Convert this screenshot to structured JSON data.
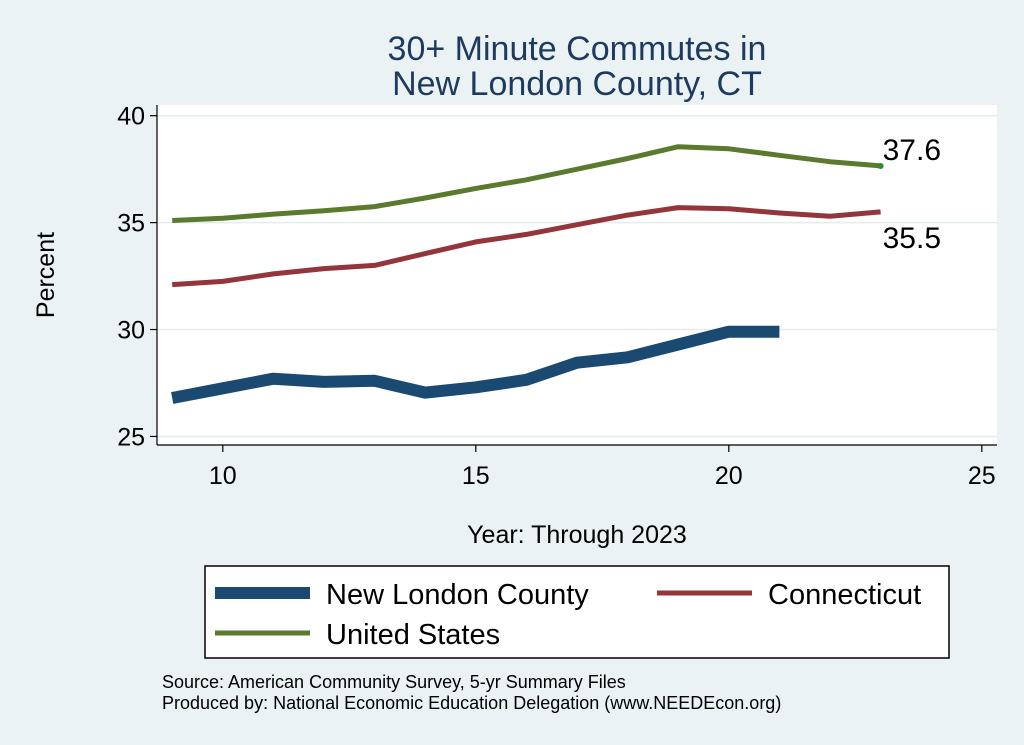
{
  "chart_data": {
    "type": "line",
    "title_lines": [
      "30+ Minute Commutes in",
      "New London County, CT"
    ],
    "xlabel": "Year: Through 2023",
    "ylabel": "Percent",
    "xlim": [
      8.7,
      25.3
    ],
    "ylim": [
      24.6,
      40.5
    ],
    "xticks": [
      10,
      15,
      20,
      25
    ],
    "yticks": [
      25,
      30,
      35,
      40
    ],
    "grid": true,
    "legend_position": "bottom",
    "series": [
      {
        "name": "New London County",
        "color": "#1a4971",
        "x": [
          9,
          10,
          11,
          12,
          13,
          14,
          15,
          16,
          17,
          18,
          19,
          20,
          21
        ],
        "values": [
          26.8,
          27.25,
          27.7,
          27.55,
          27.6,
          27.05,
          27.3,
          27.65,
          28.45,
          28.7,
          29.3,
          29.9,
          29.9
        ]
      },
      {
        "name": "Connecticut",
        "color": "#93353a",
        "x": [
          9,
          10,
          11,
          12,
          13,
          14,
          15,
          16,
          17,
          18,
          19,
          20,
          21,
          22,
          23
        ],
        "values": [
          32.1,
          32.25,
          32.6,
          32.85,
          33.0,
          33.55,
          34.1,
          34.45,
          34.9,
          35.35,
          35.7,
          35.65,
          35.45,
          35.3,
          35.5
        ]
      },
      {
        "name": "United States",
        "color": "#5a7a2e",
        "x": [
          9,
          10,
          11,
          12,
          13,
          14,
          15,
          16,
          17,
          18,
          19,
          20,
          21,
          22,
          23
        ],
        "values": [
          35.1,
          35.2,
          35.4,
          35.55,
          35.75,
          36.15,
          36.6,
          37.0,
          37.5,
          38.0,
          38.55,
          38.45,
          38.15,
          37.85,
          37.65
        ]
      }
    ],
    "annotations": [
      {
        "text": "37.6",
        "series": "United States",
        "x": 23,
        "y": 37.65
      },
      {
        "text": "35.5",
        "series": "Connecticut",
        "x": 23,
        "y": 35.5
      }
    ],
    "source_lines": [
      "Source: American Community Survey, 5-yr Summary Files",
      "Produced by: National Economic Education Delegation (www.NEEDEcon.org)"
    ]
  }
}
